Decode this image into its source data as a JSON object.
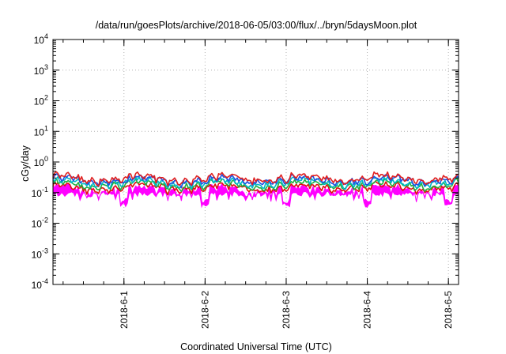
{
  "chart_data": {
    "type": "line",
    "title": "/data/run/goesPlots/archive/2018-06-05/03:00/flux/../bryn/5daysMoon.plot",
    "xlabel": "Coordinated Universal Time (UTC)",
    "ylabel": "cGy/day",
    "yscale": "log",
    "ylim": [
      0.0001,
      10000
    ],
    "y_ticks": [
      {
        "value": 0.0001,
        "base": "10",
        "exp": "-4"
      },
      {
        "value": 0.001,
        "base": "10",
        "exp": "-3"
      },
      {
        "value": 0.01,
        "base": "10",
        "exp": "-2"
      },
      {
        "value": 0.1,
        "base": "10",
        "exp": "-1"
      },
      {
        "value": 1,
        "base": "10",
        "exp": "0"
      },
      {
        "value": 10,
        "base": "10",
        "exp": "1"
      },
      {
        "value": 100,
        "base": "10",
        "exp": "2"
      },
      {
        "value": 1000,
        "base": "10",
        "exp": "3"
      },
      {
        "value": 10000,
        "base": "10",
        "exp": "4"
      }
    ],
    "xlim": [
      "2018-05-31T03:00",
      "2018-06-05T03:00"
    ],
    "x_ticks": [
      {
        "value": "2018-06-01T00:00",
        "label": "2018-6-1"
      },
      {
        "value": "2018-06-02T00:00",
        "label": "2018-6-2"
      },
      {
        "value": "2018-06-03T00:00",
        "label": "2018-6-3"
      },
      {
        "value": "2018-06-04T00:00",
        "label": "2018-6-4"
      },
      {
        "value": "2018-06-05T00:00",
        "label": "2018-6-5"
      }
    ],
    "grid": true,
    "legend": "none",
    "series_style": [
      {
        "color": "#ff00ff",
        "base": 0.13,
        "drop": 0.6,
        "fill": true
      },
      {
        "color": "#e01010",
        "base": 0.155,
        "drop": 0.2,
        "fill": false
      },
      {
        "color": "#20b040",
        "base": 0.19,
        "drop": 0.2,
        "fill": false
      },
      {
        "color": "#00b8c8",
        "base": 0.225,
        "drop": 0.2,
        "fill": false
      },
      {
        "color": "#2050e0",
        "base": 0.27,
        "drop": 0.22,
        "fill": false
      },
      {
        "color": "#e02020",
        "base": 0.31,
        "drop": 0.22,
        "fill": false
      }
    ]
  }
}
